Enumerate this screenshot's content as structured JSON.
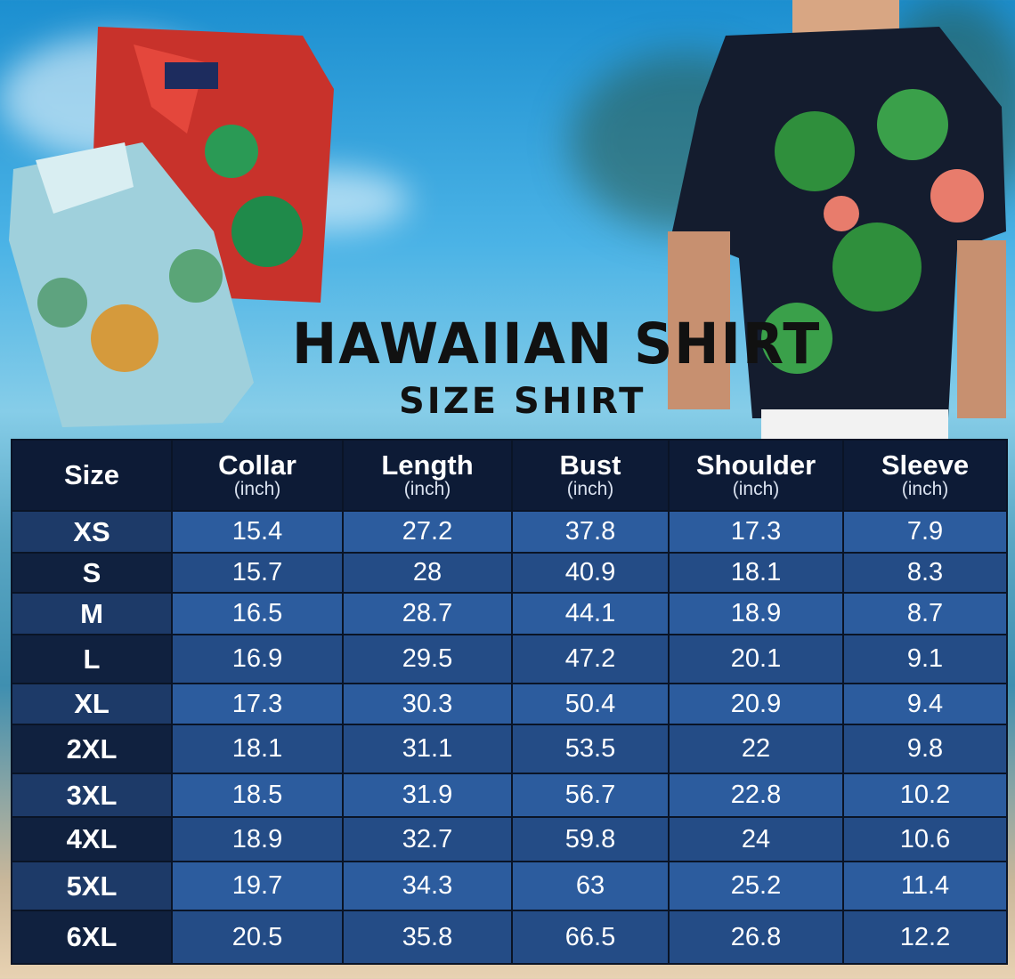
{
  "title": "HAWAIIAN SHIRT",
  "subtitle": "SIZE SHIRT",
  "colors": {
    "header": "#0d1b36",
    "row_light": "#2c5c9e",
    "row_dark": "#244c86"
  },
  "table": {
    "columns": [
      {
        "label": "Size",
        "unit": ""
      },
      {
        "label": "Collar",
        "unit": "(inch)"
      },
      {
        "label": "Length",
        "unit": "(inch)"
      },
      {
        "label": "Bust",
        "unit": "(inch)"
      },
      {
        "label": "Shoulder",
        "unit": "(inch)"
      },
      {
        "label": "Sleeve",
        "unit": "(inch)"
      }
    ],
    "rows": [
      [
        "XS",
        "15.4",
        "27.2",
        "37.8",
        "17.3",
        "7.9"
      ],
      [
        "S",
        "15.7",
        "28",
        "40.9",
        "18.1",
        "8.3"
      ],
      [
        "M",
        "16.5",
        "28.7",
        "44.1",
        "18.9",
        "8.7"
      ],
      [
        "L",
        "16.9",
        "29.5",
        "47.2",
        "20.1",
        "9.1"
      ],
      [
        "XL",
        "17.3",
        "30.3",
        "50.4",
        "20.9",
        "9.4"
      ],
      [
        "2XL",
        "18.1",
        "31.1",
        "53.5",
        "22",
        "9.8"
      ],
      [
        "3XL",
        "18.5",
        "31.9",
        "56.7",
        "22.8",
        "10.2"
      ],
      [
        "4XL",
        "18.9",
        "32.7",
        "59.8",
        "24",
        "10.6"
      ],
      [
        "5XL",
        "19.7",
        "34.3",
        "63",
        "25.2",
        "11.4"
      ],
      [
        "6XL",
        "20.5",
        "35.8",
        "66.5",
        "26.8",
        "12.2"
      ]
    ]
  }
}
